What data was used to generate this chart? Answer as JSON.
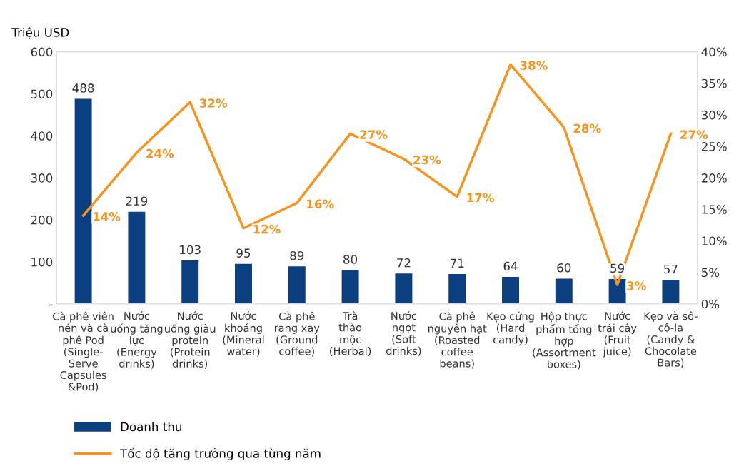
{
  "chart_data": {
    "type": "bar",
    "ylabel": "Triệu USD",
    "categories": [
      "Cà phê viên\nnén và cà\nphê Pod\n(Single-\nServe\nCapsules\n&Pod)",
      "Nước\nuống tăng\nlực\n(Energy\ndrinks)",
      "Nước\nuống giàu\nprotein\n(Protein\ndrinks)",
      "Nước\nkhoáng\n(Mineral\nwater)",
      "Cà phê\nrang xay\n(Ground\ncoffee)",
      "Trà\nthảo\nmộc\n(Herbal)",
      "Nước\nngọt\n(Soft\ndrinks)",
      "Cà phê\nnguyên hạt\n(Roasted\ncoffee\nbeans)",
      "Kẹo cứng\n(Hard\ncandy)",
      "Hộp thực\nphẩm tổng\nhợp\n(Assortment\nboxes)",
      "Nước\ntrái cây\n(Fruit\njuice)",
      "Kẹo và sô-\ncô-la\n(Candy &\nChocolate\nBars)"
    ],
    "series": [
      {
        "name": "Doanh thu",
        "color": "#0c3f7f",
        "values": [
          488,
          219,
          103,
          95,
          89,
          80,
          72,
          71,
          64,
          60,
          59,
          57
        ],
        "value_labels": [
          "488",
          "219",
          "103",
          "95",
          "89",
          "80",
          "72",
          "71",
          "64",
          "60",
          "59",
          "57"
        ]
      },
      {
        "name": "Tốc độ tăng trưởng qua từng năm",
        "type": "line",
        "axis": "y2",
        "color": "#f7941d",
        "values": [
          14,
          24,
          32,
          12,
          16,
          27,
          23,
          17,
          38,
          28,
          3,
          27
        ],
        "value_labels": [
          "14%",
          "24%",
          "32%",
          "12%",
          "16%",
          "27%",
          "23%",
          "17%",
          "38%",
          "28%",
          "3%",
          "27%"
        ]
      }
    ],
    "ylim": [
      0,
      600
    ],
    "yticks": [
      {
        "value": 0,
        "label": "-"
      },
      100,
      200,
      300,
      400,
      500,
      600
    ],
    "y2lim": [
      0,
      40
    ],
    "y2ticks": [
      {
        "value": 0,
        "label": "0%"
      },
      {
        "value": 5,
        "label": "5%"
      },
      {
        "value": 10,
        "label": "10%"
      },
      {
        "value": 15,
        "label": "15%"
      },
      {
        "value": 20,
        "label": "20%"
      },
      {
        "value": 25,
        "label": "25%"
      },
      {
        "value": 30,
        "label": "30%"
      },
      {
        "value": 35,
        "label": "35%"
      },
      {
        "value": 40,
        "label": "40%"
      }
    ],
    "grid": false,
    "legend": "bottom left",
    "marker": "none",
    "line_style": "solid"
  }
}
